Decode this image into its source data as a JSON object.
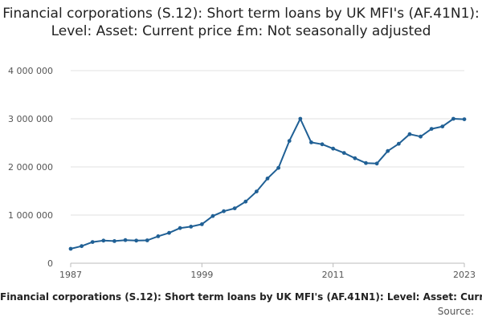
{
  "chart_data": {
    "type": "line",
    "title": "Financial corporations (S.12): Short term loans by UK MFI's (AF.41N1): Level: Asset: Current price £m: Not seasonally adjusted",
    "xlabel": "",
    "ylabel": "",
    "x_tick_labels": [
      "1987",
      "1999",
      "2011",
      "2023"
    ],
    "y_tick_labels": [
      "0",
      "1 000 000",
      "2 000 000",
      "3 000 000",
      "4 000 000"
    ],
    "ylim": [
      0,
      4000000
    ],
    "xlim": [
      1987,
      2023
    ],
    "grid": true,
    "legend_position": "bottom",
    "source_label": "Source:",
    "color": "#206095",
    "x": [
      1987,
      1988,
      1989,
      1990,
      1991,
      1992,
      1993,
      1994,
      1995,
      1996,
      1997,
      1998,
      1999,
      2000,
      2001,
      2002,
      2003,
      2004,
      2005,
      2006,
      2007,
      2008,
      2009,
      2010,
      2011,
      2012,
      2013,
      2014,
      2015,
      2016,
      2017,
      2018,
      2019,
      2020,
      2021,
      2022,
      2023
    ],
    "series": [
      {
        "name": "Financial corporations (S.12): Short term loans by UK MFI's (AF.41N1): Level: Asset: Current price £m: Not seasonally adjusted",
        "values": [
          300000,
          355000,
          440000,
          470000,
          460000,
          480000,
          470000,
          475000,
          560000,
          630000,
          730000,
          760000,
          810000,
          980000,
          1080000,
          1140000,
          1280000,
          1490000,
          1760000,
          1980000,
          2540000,
          3000000,
          2510000,
          2470000,
          2380000,
          2290000,
          2180000,
          2080000,
          2070000,
          2330000,
          2480000,
          2680000,
          2630000,
          2790000,
          2840000,
          3000000,
          2990000
        ]
      }
    ]
  }
}
